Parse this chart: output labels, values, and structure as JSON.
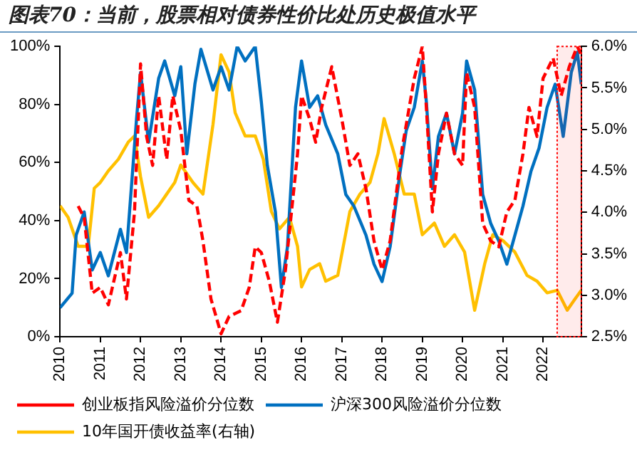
{
  "chart_data": {
    "type": "line",
    "title": "图表70：当前，股票相对债券性价比处历史极值水平",
    "xlim": [
      2010,
      2022.95
    ],
    "xticks": [
      2010,
      2011,
      2012,
      2013,
      2014,
      2015,
      2016,
      2017,
      2018,
      2019,
      2020,
      2021,
      2022
    ],
    "ylim": [
      0,
      100
    ],
    "yticks": [
      {
        "value": 0,
        "label": "0%"
      },
      {
        "value": 20,
        "label": "20%"
      },
      {
        "value": 40,
        "label": "40%"
      },
      {
        "value": 60,
        "label": "60%"
      },
      {
        "value": 80,
        "label": "80%"
      },
      {
        "value": 100,
        "label": "100%"
      }
    ],
    "y2lim": [
      2.5,
      6.0
    ],
    "y2ticks": [
      {
        "value": 2.5,
        "label": "2.5%"
      },
      {
        "value": 3.0,
        "label": "3.0%"
      },
      {
        "value": 3.5,
        "label": "3.5%"
      },
      {
        "value": 4.0,
        "label": "4.0%"
      },
      {
        "value": 4.5,
        "label": "4.5%"
      },
      {
        "value": 5.0,
        "label": "5.0%"
      },
      {
        "value": 5.5,
        "label": "5.5%"
      },
      {
        "value": 6.0,
        "label": "6.0%"
      }
    ],
    "grid": false,
    "legend": "bottom",
    "marker": "none",
    "bands": [
      {
        "axis": "x",
        "from": 2022.35,
        "to": 2022.95,
        "color": "#ff0000"
      }
    ],
    "series": [
      {
        "name": "创业板指风险溢价分位数",
        "color": "#ff0000",
        "line_style": "dashed",
        "x": [
          2010.45,
          2010.6,
          2010.8,
          2011.0,
          2011.2,
          2011.5,
          2011.65,
          2011.85,
          2012.0,
          2012.15,
          2012.3,
          2012.45,
          2012.65,
          2012.8,
          2013.0,
          2013.2,
          2013.4,
          2013.55,
          2013.75,
          2014.0,
          2014.2,
          2014.5,
          2014.7,
          2014.85,
          2015.0,
          2015.2,
          2015.4,
          2015.6,
          2015.75,
          2015.9,
          2016.0,
          2016.2,
          2016.35,
          2016.5,
          2016.75,
          2017.0,
          2017.2,
          2017.4,
          2017.6,
          2017.8,
          2018.0,
          2018.2,
          2018.5,
          2018.8,
          2019.0,
          2019.1,
          2019.25,
          2019.4,
          2019.6,
          2019.8,
          2020.0,
          2020.1,
          2020.3,
          2020.5,
          2020.7,
          2020.9,
          2021.1,
          2021.3,
          2021.5,
          2021.65,
          2021.85,
          2022.0,
          2022.25,
          2022.45,
          2022.65,
          2022.85,
          2022.95
        ],
        "values": [
          45,
          41,
          15,
          17,
          11,
          29,
          13,
          43,
          94,
          69,
          59,
          83,
          61,
          83,
          71,
          47,
          45,
          33,
          13,
          1,
          7,
          9,
          17,
          31,
          29,
          19,
          5,
          23,
          43,
          63,
          83,
          75,
          67,
          79,
          93,
          75,
          59,
          63,
          51,
          33,
          23,
          33,
          65,
          89,
          100,
          79,
          43,
          63,
          77,
          63,
          59,
          91,
          79,
          39,
          33,
          31,
          43,
          47,
          63,
          79,
          69,
          89,
          96,
          83,
          93,
          100,
          97
        ]
      },
      {
        "name": "沪深300风险溢价分位数",
        "color": "#0070c0",
        "line_style": "solid",
        "x": [
          2010.0,
          2010.3,
          2010.4,
          2010.6,
          2010.8,
          2011.0,
          2011.2,
          2011.5,
          2011.65,
          2011.9,
          2012.0,
          2012.2,
          2012.45,
          2012.6,
          2012.85,
          2013.0,
          2013.15,
          2013.35,
          2013.5,
          2013.8,
          2014.0,
          2014.2,
          2014.4,
          2014.6,
          2014.85,
          2015.0,
          2015.15,
          2015.35,
          2015.5,
          2015.65,
          2015.85,
          2016.0,
          2016.2,
          2016.4,
          2016.6,
          2016.9,
          2017.1,
          2017.3,
          2017.6,
          2017.8,
          2018.0,
          2018.2,
          2018.45,
          2018.6,
          2018.8,
          2019.0,
          2019.1,
          2019.25,
          2019.4,
          2019.6,
          2019.8,
          2020.0,
          2020.1,
          2020.3,
          2020.5,
          2020.7,
          2020.9,
          2021.1,
          2021.3,
          2021.5,
          2021.7,
          2021.9,
          2022.1,
          2022.3,
          2022.5,
          2022.7,
          2022.85,
          2022.95
        ],
        "values": [
          10,
          15,
          35,
          43,
          23,
          29,
          21,
          37,
          29,
          75,
          91,
          67,
          89,
          95,
          83,
          93,
          63,
          87,
          99,
          85,
          93,
          85,
          100,
          95,
          100,
          81,
          59,
          43,
          17,
          31,
          79,
          95,
          79,
          83,
          73,
          63,
          49,
          45,
          35,
          25,
          19,
          31,
          57,
          71,
          79,
          95,
          81,
          51,
          69,
          77,
          63,
          77,
          95,
          85,
          49,
          39,
          33,
          25,
          35,
          45,
          57,
          65,
          79,
          87,
          69,
          91,
          98,
          87
        ]
      },
      {
        "name": "10年国开债收益率(右轴)",
        "color": "#ffc000",
        "line_style": "solid",
        "axis": "y2",
        "x": [
          2010.0,
          2010.2,
          2010.45,
          2010.7,
          2010.85,
          2011.0,
          2011.2,
          2011.45,
          2011.7,
          2011.85,
          2012.0,
          2012.2,
          2012.45,
          2012.65,
          2012.85,
          2013.0,
          2013.3,
          2013.55,
          2013.8,
          2014.0,
          2014.2,
          2014.35,
          2014.6,
          2014.85,
          2015.05,
          2015.25,
          2015.45,
          2015.7,
          2015.9,
          2016.0,
          2016.2,
          2016.45,
          2016.6,
          2016.9,
          2017.2,
          2017.45,
          2017.7,
          2017.9,
          2018.05,
          2018.3,
          2018.55,
          2018.8,
          2019.0,
          2019.3,
          2019.55,
          2019.8,
          2020.05,
          2020.3,
          2020.55,
          2020.75,
          2021.0,
          2021.3,
          2021.6,
          2021.85,
          2022.1,
          2022.35,
          2022.6,
          2022.8,
          2022.95
        ],
        "values": [
          4.08,
          3.94,
          3.59,
          3.59,
          4.29,
          4.36,
          4.5,
          4.64,
          4.85,
          4.92,
          4.43,
          3.94,
          4.08,
          4.22,
          4.36,
          4.57,
          4.36,
          4.22,
          5.06,
          5.9,
          5.69,
          5.2,
          4.92,
          4.92,
          4.64,
          4.01,
          3.8,
          3.94,
          3.59,
          3.1,
          3.31,
          3.38,
          3.17,
          3.24,
          4.01,
          4.22,
          4.36,
          4.71,
          5.13,
          4.71,
          4.22,
          4.22,
          3.73,
          3.87,
          3.59,
          3.73,
          3.52,
          2.82,
          3.38,
          3.73,
          3.66,
          3.52,
          3.24,
          3.17,
          3.03,
          3.06,
          2.82,
          2.96,
          3.06
        ]
      }
    ]
  }
}
